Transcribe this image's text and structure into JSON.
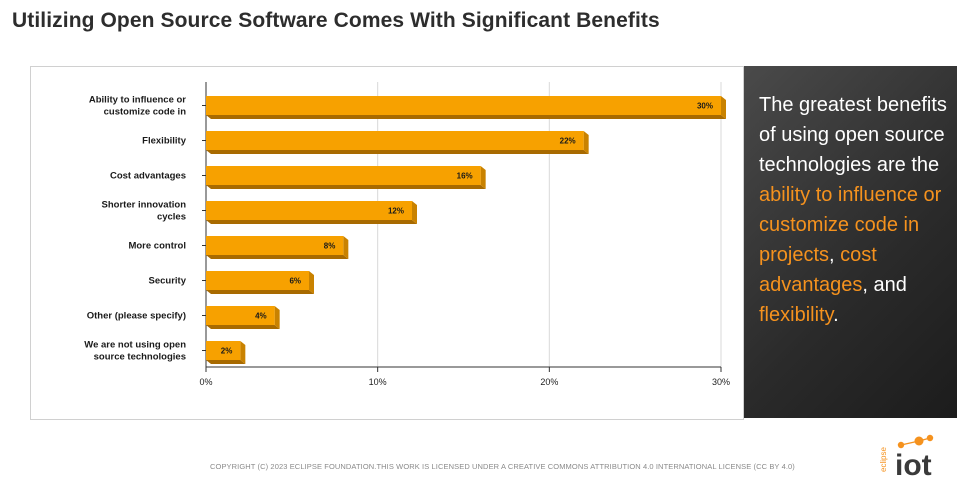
{
  "page": {
    "title": "Utilizing Open Source Software Comes With Significant Benefits",
    "copyright": "COPYRIGHT (C) 2023 ECLIPSE FOUNDATION.THIS WORK IS LICENSED UNDER A CREATIVE COMMONS ATTRIBUTION 4.0 INTERNATIONAL LICENSE (CC BY 4.0)"
  },
  "side_panel": {
    "t1": "The greatest benefits of using open source technologies are the ",
    "h1": "ability to influence or customize code in projects",
    "t2": ", ",
    "h2": "cost advantages",
    "t3": ", and ",
    "h3": "flexibility",
    "t4": ".",
    "highlight_color": "#f5921e"
  },
  "logo": {
    "small_text": "eclipse",
    "main_text": "iot",
    "accent_color": "#f5921e"
  },
  "chart_data": {
    "type": "bar",
    "orientation": "horizontal",
    "categories": [
      [
        "Ability to influence or",
        "customize code in"
      ],
      [
        "Flexibility"
      ],
      [
        "Cost advantages"
      ],
      [
        "Shorter innovation",
        "cycles"
      ],
      [
        "More control"
      ],
      [
        "Security"
      ],
      [
        "Other (please specify)"
      ],
      [
        "We are not using open",
        "source technologies"
      ]
    ],
    "values": [
      30,
      22,
      16,
      12,
      8,
      6,
      4,
      2
    ],
    "data_labels": [
      "30%",
      "22%",
      "16%",
      "12%",
      "8%",
      "6%",
      "4%",
      "2%"
    ],
    "xlim": [
      0,
      30
    ],
    "x_ticks": [
      0,
      10,
      20,
      30
    ],
    "x_tick_labels": [
      "0%",
      "10%",
      "20%",
      "30%"
    ],
    "grid": true,
    "bar_color": "#f7a100",
    "bar_shadow_color": "#a86a00"
  }
}
